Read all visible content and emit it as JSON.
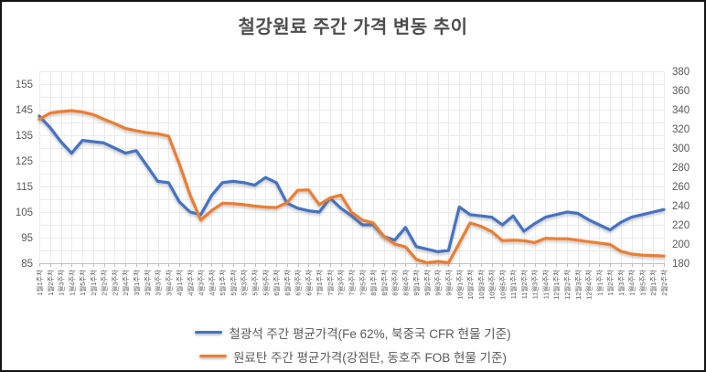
{
  "chart_data": {
    "type": "line",
    "title": "철강원료 주간 가격 변동 추이",
    "legend_position": "bottom",
    "grid": true,
    "categories": [
      "1월1주차",
      "1월2주차",
      "1월3주차",
      "1월4주차",
      "1월5주차",
      "2월1주차",
      "2월2주차",
      "2월3주차",
      "2월4주차",
      "3월1주차",
      "3월2주차",
      "3월3주차",
      "3월4주차",
      "4월1주차",
      "4월2주차",
      "4월3주차",
      "4월4주차",
      "5월1주차",
      "5월2주차",
      "5월3주차",
      "5월4주차",
      "5월5주차",
      "6월1주차",
      "6월2주차",
      "6월3주차",
      "6월4주차",
      "7월1주차",
      "7월2주차",
      "7월3주차",
      "7월4주차",
      "7월5주차",
      "8월1주차",
      "8월2주차",
      "8월3주차",
      "8월4주차",
      "9월1주차",
      "9월2주차",
      "9월3주차",
      "9월4주차",
      "10월1주차",
      "10월2주차",
      "10월3주차",
      "10월4주차",
      "10월5주차",
      "11월1주차",
      "11월2주차",
      "11월3주차",
      "11월4주차",
      "12월1주차",
      "12월2주차",
      "12월3주차",
      "12월4주차",
      "1월1주차",
      "1월2주차",
      "1월3주차",
      "1월4주차",
      "1월5주차",
      "2월1주차",
      "2월2주차"
    ],
    "left_axis": {
      "min": 85,
      "max": 160,
      "ticks": [
        155,
        145,
        135,
        125,
        115,
        105,
        95,
        85
      ]
    },
    "right_axis": {
      "min": 180,
      "max": 380,
      "ticks": [
        380,
        360,
        340,
        320,
        300,
        280,
        260,
        240,
        220,
        200,
        180
      ]
    },
    "series": [
      {
        "name": "철광석 주간 평균가격(Fe 62%, 북중국 CFR 현물 기준)",
        "axis": "left",
        "color": "#4472C4",
        "values": [
          142.5,
          138,
          132.5,
          128,
          133,
          132.5,
          132,
          130,
          128,
          129,
          123,
          117,
          116.5,
          109,
          105,
          104,
          111.5,
          116.5,
          117,
          116.5,
          115.5,
          118.5,
          116.5,
          108.5,
          106.5,
          105.5,
          105,
          110.5,
          106.5,
          103.5,
          100,
          100,
          95.5,
          94,
          99,
          91.5,
          90.5,
          89.5,
          90,
          107,
          104,
          103.5,
          103,
          100,
          103.5,
          97.5,
          100.5,
          103,
          104,
          105,
          104.5,
          102,
          100,
          98,
          101,
          103,
          104,
          105,
          106
        ]
      },
      {
        "name": "원료탄 주간 평균가격(강점탄, 동호주 FOB 현물 기준)",
        "axis": "right",
        "color": "#ED7D31",
        "values": [
          330,
          336.5,
          338,
          339,
          337.5,
          335,
          330,
          325.5,
          320.5,
          318,
          316,
          315,
          312.5,
          283.5,
          251,
          225,
          235,
          242.5,
          242,
          241,
          239.5,
          238.5,
          238,
          243,
          256,
          256.5,
          241,
          248,
          251,
          233,
          225,
          222,
          208,
          200,
          197,
          184,
          180.5,
          182,
          180.5,
          201,
          222,
          218.5,
          213,
          203.5,
          204,
          203.5,
          201.5,
          206,
          205.5,
          205.5,
          204,
          202.5,
          201,
          199.5,
          192.5,
          189.5,
          188.5,
          188,
          187.5
        ]
      }
    ],
    "colors": {
      "grid": "#ebebeb",
      "axis_line": "#c0c0c0",
      "axis_text": "#595959"
    }
  }
}
